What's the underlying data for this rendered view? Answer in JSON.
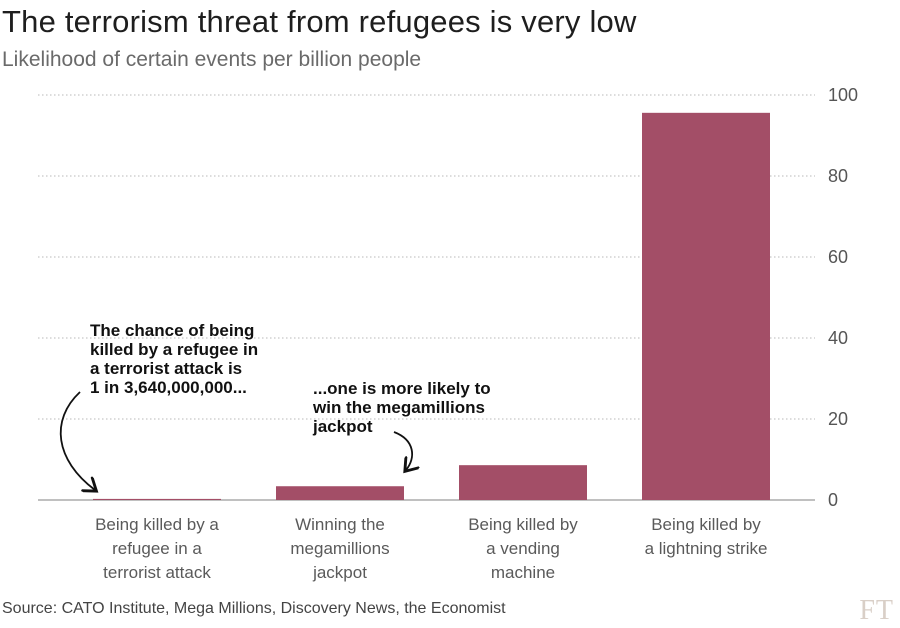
{
  "title": "The terrorism threat from refugees is very low",
  "subtitle": "Likelihood of certain events per billion people",
  "source": "Source: CATO Institute, Mega Millions, Discovery News, the Economist",
  "logo": "FT",
  "chart_data": {
    "type": "bar",
    "categories": [
      [
        "Being killed by a",
        "refugee in a",
        "terrorist attack"
      ],
      [
        "Winning the",
        "megamillions",
        "jackpot"
      ],
      [
        "Being killed by",
        "a vending",
        "machine"
      ],
      [
        "Being killed by",
        "a lightning strike"
      ]
    ],
    "values": [
      0.27,
      3.4,
      8.6,
      95.6
    ],
    "ylim": [
      0,
      100
    ],
    "yticks": [
      "0",
      "20",
      "40",
      "60",
      "80",
      "100"
    ],
    "y_axis_position": "right",
    "grid": "dotted horizontal",
    "bar_color": "#a34e67",
    "annotations": [
      {
        "lines": [
          "The chance of being",
          "killed by a refugee in",
          "a terrorist attack is",
          "1 in 3,640,000,000..."
        ]
      },
      {
        "lines": [
          "...one is more likely to",
          "win the megamillions",
          "jackpot"
        ]
      }
    ]
  }
}
